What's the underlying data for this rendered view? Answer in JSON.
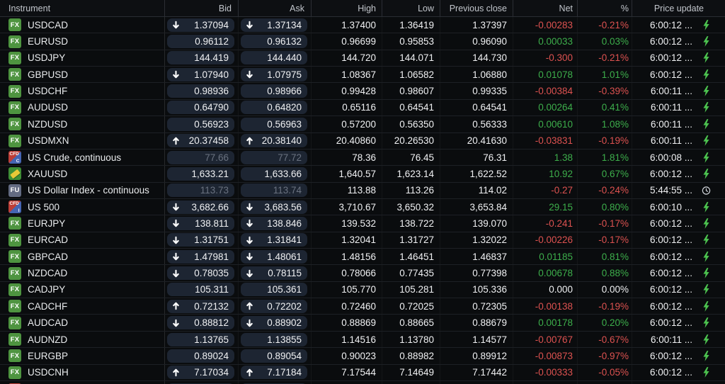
{
  "colors": {
    "background": "#0a0c0e",
    "pill": "#1d2532",
    "positive": "#3dae4b",
    "negative": "#dd5250",
    "neutral_value": "#f0f1f3",
    "stale_value": "#6a7280",
    "fx_badge_green": "#4e9440",
    "lightning_green": "#4cc24f",
    "clock_gray": "#cfd3d9"
  },
  "badges": {
    "fx": {
      "label": "FX"
    },
    "fu": {
      "label": "FU"
    },
    "gold": {
      "icon": "gold-bar-icon"
    },
    "cfd-c": {
      "label": "CFD",
      "sub": "C"
    },
    "cfd-i": {
      "label": "CFD",
      "sub": "I"
    }
  },
  "table": {
    "columns": [
      "Instrument",
      "Bid",
      "Ask",
      "High",
      "Low",
      "Previous close",
      "Net",
      "%",
      "Price update"
    ],
    "rows": [
      {
        "name": "USDCAD",
        "badge": "fx",
        "bid": {
          "value": "1.37094",
          "arrow": "down"
        },
        "ask": {
          "value": "1.37134",
          "arrow": "down"
        },
        "high": "1.37400",
        "low": "1.36419",
        "prev": "1.37397",
        "net": {
          "value": "-0.00283",
          "tone": "down"
        },
        "pct": {
          "value": "-0.21%",
          "tone": "down"
        },
        "time": "6:00:12 ...",
        "icon": "lightning"
      },
      {
        "name": "EURUSD",
        "badge": "fx",
        "bid": {
          "value": "0.96112"
        },
        "ask": {
          "value": "0.96132"
        },
        "high": "0.96699",
        "low": "0.95853",
        "prev": "0.96090",
        "net": {
          "value": "0.00033",
          "tone": "up"
        },
        "pct": {
          "value": "0.03%",
          "tone": "up"
        },
        "time": "6:00:12 ...",
        "icon": "lightning"
      },
      {
        "name": "USDJPY",
        "badge": "fx",
        "bid": {
          "value": "144.419"
        },
        "ask": {
          "value": "144.440"
        },
        "high": "144.720",
        "low": "144.071",
        "prev": "144.730",
        "net": {
          "value": "-0.300",
          "tone": "down"
        },
        "pct": {
          "value": "-0.21%",
          "tone": "down"
        },
        "time": "6:00:12 ...",
        "icon": "lightning"
      },
      {
        "name": "GBPUSD",
        "badge": "fx",
        "bid": {
          "value": "1.07940",
          "arrow": "down"
        },
        "ask": {
          "value": "1.07975",
          "arrow": "down"
        },
        "high": "1.08367",
        "low": "1.06582",
        "prev": "1.06880",
        "net": {
          "value": "0.01078",
          "tone": "up"
        },
        "pct": {
          "value": "1.01%",
          "tone": "up"
        },
        "time": "6:00:12 ...",
        "icon": "lightning"
      },
      {
        "name": "USDCHF",
        "badge": "fx",
        "bid": {
          "value": "0.98936"
        },
        "ask": {
          "value": "0.98966"
        },
        "high": "0.99428",
        "low": "0.98607",
        "prev": "0.99335",
        "net": {
          "value": "-0.00384",
          "tone": "down"
        },
        "pct": {
          "value": "-0.39%",
          "tone": "down"
        },
        "time": "6:00:11 ...",
        "icon": "lightning"
      },
      {
        "name": "AUDUSD",
        "badge": "fx",
        "bid": {
          "value": "0.64790"
        },
        "ask": {
          "value": "0.64820"
        },
        "high": "0.65116",
        "low": "0.64541",
        "prev": "0.64541",
        "net": {
          "value": "0.00264",
          "tone": "up"
        },
        "pct": {
          "value": "0.41%",
          "tone": "up"
        },
        "time": "6:00:11 ...",
        "icon": "lightning"
      },
      {
        "name": "NZDUSD",
        "badge": "fx",
        "bid": {
          "value": "0.56923"
        },
        "ask": {
          "value": "0.56963"
        },
        "high": "0.57200",
        "low": "0.56350",
        "prev": "0.56333",
        "net": {
          "value": "0.00610",
          "tone": "up"
        },
        "pct": {
          "value": "1.08%",
          "tone": "up"
        },
        "time": "6:00:11 ...",
        "icon": "lightning"
      },
      {
        "name": "USDMXN",
        "badge": "fx",
        "bid": {
          "value": "20.37458",
          "arrow": "up"
        },
        "ask": {
          "value": "20.38140",
          "arrow": "up"
        },
        "high": "20.40860",
        "low": "20.26530",
        "prev": "20.41630",
        "net": {
          "value": "-0.03831",
          "tone": "down"
        },
        "pct": {
          "value": "-0.19%",
          "tone": "down"
        },
        "time": "6:00:11 ...",
        "icon": "lightning"
      },
      {
        "name": "US Crude, continuous",
        "badge": "cfd-c",
        "bid": {
          "value": "77.66",
          "stale": true
        },
        "ask": {
          "value": "77.72",
          "stale": true
        },
        "high": "78.36",
        "low": "76.45",
        "prev": "76.31",
        "net": {
          "value": "1.38",
          "tone": "up"
        },
        "pct": {
          "value": "1.81%",
          "tone": "up"
        },
        "time": "6:00:08 ...",
        "icon": "lightning"
      },
      {
        "name": "XAUUSD",
        "badge": "gold",
        "bid": {
          "value": "1,633.21"
        },
        "ask": {
          "value": "1,633.66"
        },
        "high": "1,640.57",
        "low": "1,623.14",
        "prev": "1,622.52",
        "net": {
          "value": "10.92",
          "tone": "up"
        },
        "pct": {
          "value": "0.67%",
          "tone": "up"
        },
        "time": "6:00:12 ...",
        "icon": "lightning"
      },
      {
        "name": "US Dollar Index - continuous",
        "badge": "fu",
        "bid": {
          "value": "113.73",
          "stale": true
        },
        "ask": {
          "value": "113.74",
          "stale": true
        },
        "high": "113.88",
        "low": "113.26",
        "prev": "114.02",
        "net": {
          "value": "-0.27",
          "tone": "down"
        },
        "pct": {
          "value": "-0.24%",
          "tone": "down"
        },
        "time": "5:44:55 ...",
        "icon": "clock"
      },
      {
        "name": "US 500",
        "badge": "cfd-i",
        "bid": {
          "value": "3,682.66",
          "arrow": "down"
        },
        "ask": {
          "value": "3,683.56",
          "arrow": "down"
        },
        "high": "3,710.67",
        "low": "3,650.32",
        "prev": "3,653.84",
        "net": {
          "value": "29.15",
          "tone": "up"
        },
        "pct": {
          "value": "0.80%",
          "tone": "up"
        },
        "time": "6:00:10 ...",
        "icon": "lightning"
      },
      {
        "name": "EURJPY",
        "badge": "fx",
        "bid": {
          "value": "138.811",
          "arrow": "down"
        },
        "ask": {
          "value": "138.846",
          "arrow": "down"
        },
        "high": "139.532",
        "low": "138.722",
        "prev": "139.070",
        "net": {
          "value": "-0.241",
          "tone": "down"
        },
        "pct": {
          "value": "-0.17%",
          "tone": "down"
        },
        "time": "6:00:12 ...",
        "icon": "lightning"
      },
      {
        "name": "EURCAD",
        "badge": "fx",
        "bid": {
          "value": "1.31751",
          "arrow": "down"
        },
        "ask": {
          "value": "1.31841",
          "arrow": "down"
        },
        "high": "1.32041",
        "low": "1.31727",
        "prev": "1.32022",
        "net": {
          "value": "-0.00226",
          "tone": "down"
        },
        "pct": {
          "value": "-0.17%",
          "tone": "down"
        },
        "time": "6:00:12 ...",
        "icon": "lightning"
      },
      {
        "name": "GBPCAD",
        "badge": "fx",
        "bid": {
          "value": "1.47981",
          "arrow": "down"
        },
        "ask": {
          "value": "1.48061",
          "arrow": "down"
        },
        "high": "1.48156",
        "low": "1.46451",
        "prev": "1.46837",
        "net": {
          "value": "0.01185",
          "tone": "up"
        },
        "pct": {
          "value": "0.81%",
          "tone": "up"
        },
        "time": "6:00:12 ...",
        "icon": "lightning"
      },
      {
        "name": "NZDCAD",
        "badge": "fx",
        "bid": {
          "value": "0.78035",
          "arrow": "down"
        },
        "ask": {
          "value": "0.78115",
          "arrow": "down"
        },
        "high": "0.78066",
        "low": "0.77435",
        "prev": "0.77398",
        "net": {
          "value": "0.00678",
          "tone": "up"
        },
        "pct": {
          "value": "0.88%",
          "tone": "up"
        },
        "time": "6:00:12 ...",
        "icon": "lightning"
      },
      {
        "name": "CADJPY",
        "badge": "fx",
        "bid": {
          "value": "105.311"
        },
        "ask": {
          "value": "105.361"
        },
        "high": "105.770",
        "low": "105.281",
        "prev": "105.336",
        "net": {
          "value": "0.000",
          "tone": "flat"
        },
        "pct": {
          "value": "0.00%",
          "tone": "flat"
        },
        "time": "6:00:12 ...",
        "icon": "lightning"
      },
      {
        "name": "CADCHF",
        "badge": "fx",
        "bid": {
          "value": "0.72132",
          "arrow": "up"
        },
        "ask": {
          "value": "0.72202",
          "arrow": "up"
        },
        "high": "0.72460",
        "low": "0.72025",
        "prev": "0.72305",
        "net": {
          "value": "-0.00138",
          "tone": "down"
        },
        "pct": {
          "value": "-0.19%",
          "tone": "down"
        },
        "time": "6:00:12 ...",
        "icon": "lightning"
      },
      {
        "name": "AUDCAD",
        "badge": "fx",
        "bid": {
          "value": "0.88812",
          "arrow": "down"
        },
        "ask": {
          "value": "0.88902",
          "arrow": "down"
        },
        "high": "0.88869",
        "low": "0.88665",
        "prev": "0.88679",
        "net": {
          "value": "0.00178",
          "tone": "up"
        },
        "pct": {
          "value": "0.20%",
          "tone": "up"
        },
        "time": "6:00:12 ...",
        "icon": "lightning"
      },
      {
        "name": "AUDNZD",
        "badge": "fx",
        "bid": {
          "value": "1.13765"
        },
        "ask": {
          "value": "1.13855"
        },
        "high": "1.14516",
        "low": "1.13780",
        "prev": "1.14577",
        "net": {
          "value": "-0.00767",
          "tone": "down"
        },
        "pct": {
          "value": "-0.67%",
          "tone": "down"
        },
        "time": "6:00:11 ...",
        "icon": "lightning"
      },
      {
        "name": "EURGBP",
        "badge": "fx",
        "bid": {
          "value": "0.89024"
        },
        "ask": {
          "value": "0.89054"
        },
        "high": "0.90023",
        "low": "0.88982",
        "prev": "0.89912",
        "net": {
          "value": "-0.00873",
          "tone": "down"
        },
        "pct": {
          "value": "-0.97%",
          "tone": "down"
        },
        "time": "6:00:12 ...",
        "icon": "lightning"
      },
      {
        "name": "USDCNH",
        "badge": "fx",
        "bid": {
          "value": "7.17034",
          "arrow": "up"
        },
        "ask": {
          "value": "7.17184",
          "arrow": "up"
        },
        "high": "7.17544",
        "low": "7.14649",
        "prev": "7.17442",
        "net": {
          "value": "-0.00333",
          "tone": "down"
        },
        "pct": {
          "value": "-0.05%",
          "tone": "down"
        },
        "time": "6:00:12 ...",
        "icon": "lightning"
      }
    ]
  }
}
